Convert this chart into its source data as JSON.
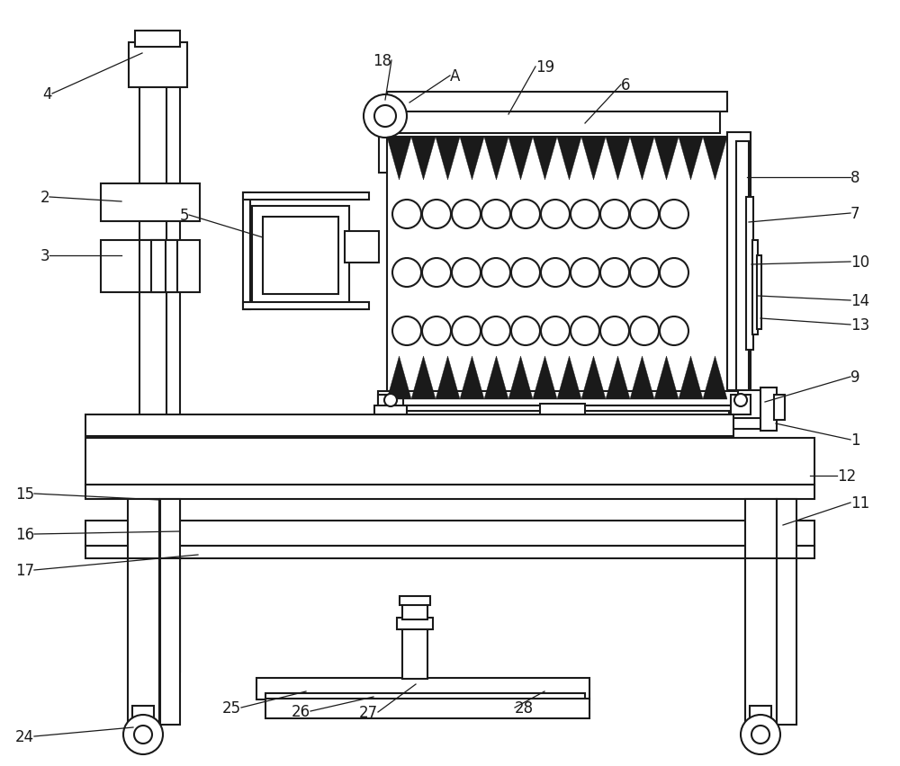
{
  "bg_color": "#ffffff",
  "line_color": "#1a1a1a",
  "lw": 1.5,
  "tlw": 0.8
}
